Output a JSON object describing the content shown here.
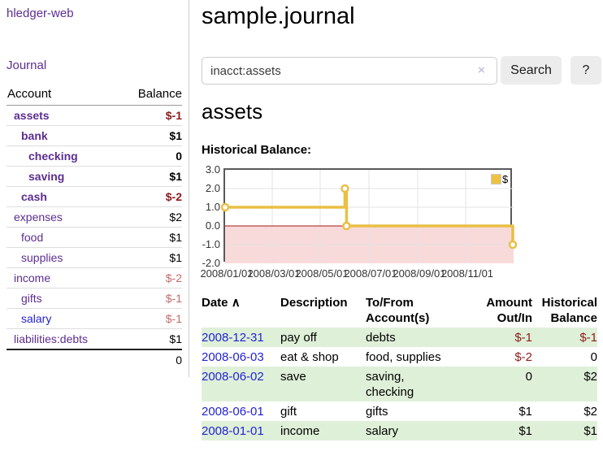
{
  "app": {
    "brand": "hledger-web"
  },
  "nav": {
    "journal": "Journal"
  },
  "sidebar": {
    "col_account": "Account",
    "col_balance": "Balance",
    "accounts": [
      {
        "name": "assets",
        "balance": "$-1"
      },
      {
        "name": "bank",
        "balance": "$1"
      },
      {
        "name": "checking",
        "balance": "0"
      },
      {
        "name": "saving",
        "balance": "$1"
      },
      {
        "name": "cash",
        "balance": "$-2"
      },
      {
        "name": "expenses",
        "balance": "$2"
      },
      {
        "name": "food",
        "balance": "$1"
      },
      {
        "name": "supplies",
        "balance": "$1"
      },
      {
        "name": "income",
        "balance": "$-2"
      },
      {
        "name": "gifts",
        "balance": "$-1"
      },
      {
        "name": "salary",
        "balance": "$-1"
      },
      {
        "name": "liabilities:debts",
        "balance": "$1"
      }
    ],
    "total": "0"
  },
  "header": {
    "title": "sample.journal"
  },
  "search": {
    "value": "inacct:assets",
    "clear_icon": "×",
    "button_label": "Search",
    "help_label": "?"
  },
  "account_page": {
    "heading": "assets",
    "chart_title": "Historical Balance:"
  },
  "chart_data": {
    "type": "line",
    "step": true,
    "title": "Historical Balance",
    "series": [
      {
        "name": "$",
        "color": "#e9bf45",
        "points": [
          [
            "2008-01-01",
            1
          ],
          [
            "2008-06-01",
            2
          ],
          [
            "2008-06-03",
            0
          ],
          [
            "2008-12-31",
            -1
          ]
        ]
      }
    ],
    "xlim": [
      "2008-01-01",
      "2009-01-01"
    ],
    "ylim": [
      -2,
      3
    ],
    "yticks": [
      "3.0",
      "2.0",
      "1.0",
      "0.0",
      "-1.0",
      "-2.0"
    ],
    "xticks": [
      "2008/01/01",
      "2008/03/01",
      "2008/05/01",
      "2008/07/01",
      "2008/09/01",
      "2008/11/01"
    ],
    "legend": {
      "label": "$",
      "position": "top-right"
    },
    "grid": true,
    "negative_region_color": "#f9dada",
    "zero_line_color": "#a31818"
  },
  "register": {
    "headers": {
      "date": "Date",
      "description": "Description",
      "tofrom": "To/From Account(s)",
      "amount": "Amount Out/In",
      "balance": "Historical Balance"
    },
    "sort_icon": "∧",
    "rows": [
      {
        "date": "2008-12-31",
        "description": "pay off",
        "tofrom": "debts",
        "amount": "$-1",
        "balance": "$-1"
      },
      {
        "date": "2008-06-03",
        "description": "eat & shop",
        "tofrom": "food, supplies",
        "amount": "$-2",
        "balance": "0"
      },
      {
        "date": "2008-06-02",
        "description": "save",
        "tofrom": "saving, checking",
        "amount": "0",
        "balance": "$2"
      },
      {
        "date": "2008-06-01",
        "description": "gift",
        "tofrom": "gifts",
        "amount": "$1",
        "balance": "$2"
      },
      {
        "date": "2008-01-01",
        "description": "income",
        "tofrom": "salary",
        "amount": "$1",
        "balance": "$1"
      }
    ]
  }
}
